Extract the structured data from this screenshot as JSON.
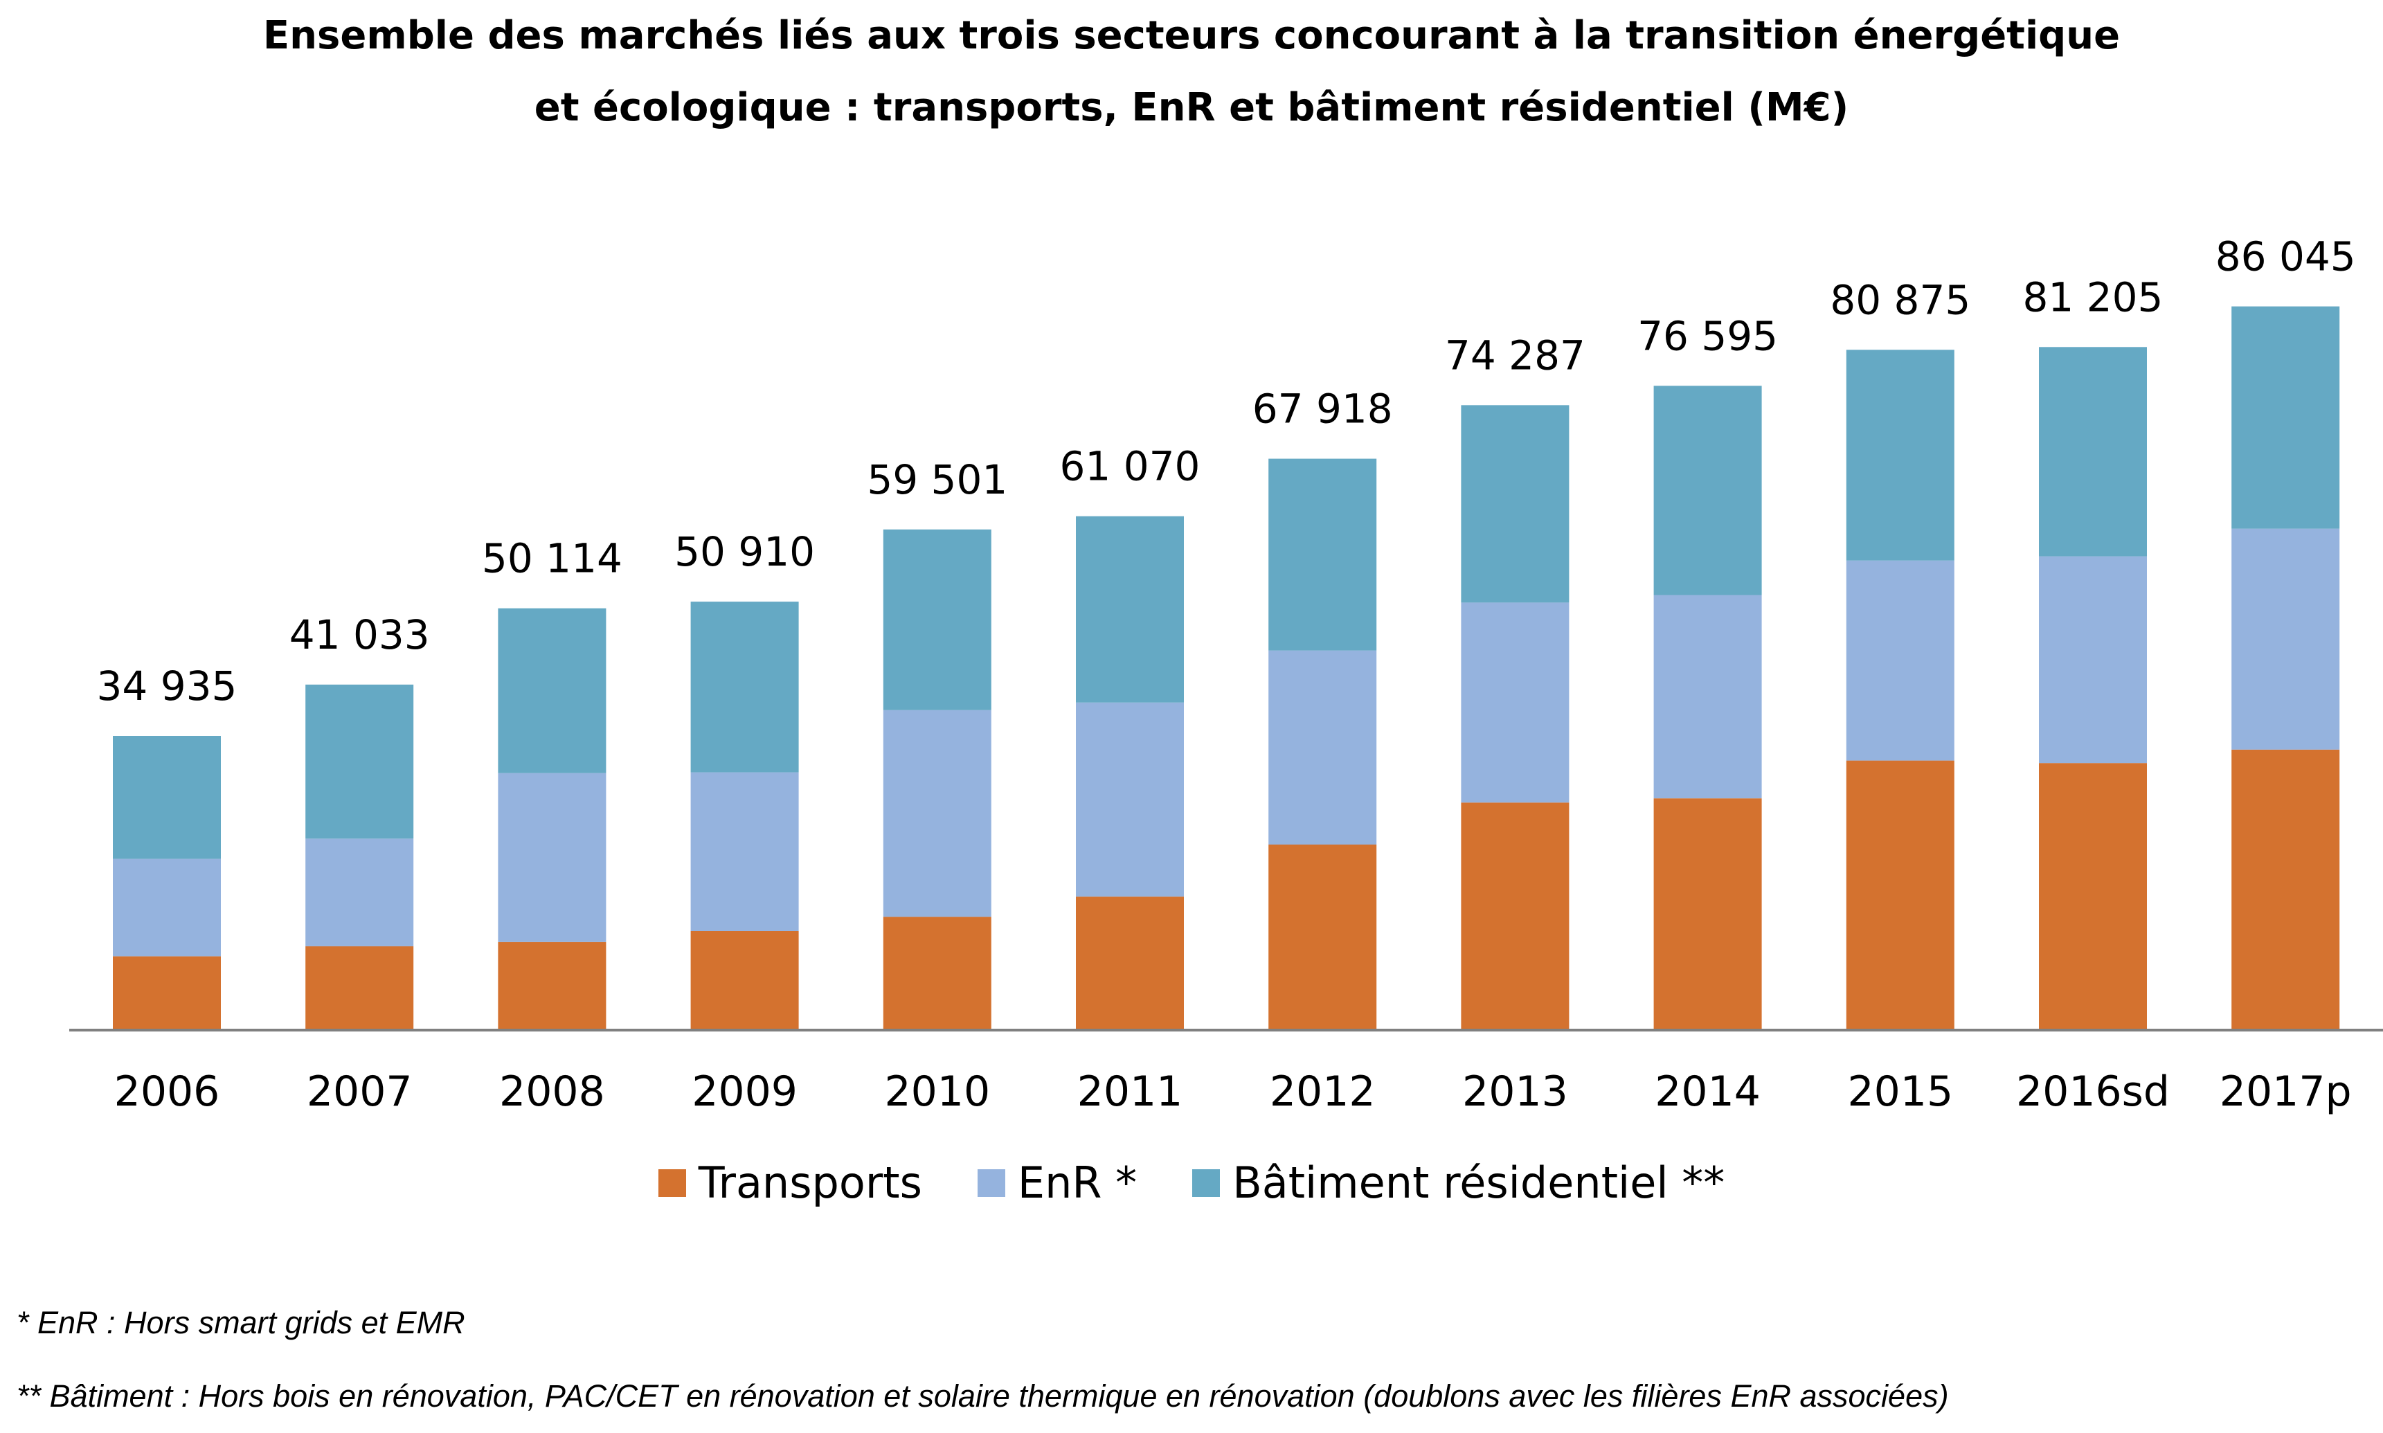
{
  "title_line1": "Ensemble des marchés liés aux trois secteurs concourant à la transition énergétique",
  "title_line2": "et écologique : transports, EnR et bâtiment résidentiel (M€)",
  "footnotes": [
    "* EnR : Hors smart grids et EMR",
    "** Bâtiment : Hors bois en rénovation, PAC/CET en rénovation et solaire thermique en rénovation (doublons avec les filières EnR associées)"
  ],
  "colors": {
    "transports": "#D4722F",
    "enr": "#95B3DE",
    "batiment": "#65A9C4",
    "axis": "#808080"
  },
  "chart_data": {
    "type": "bar",
    "stacked": true,
    "title": "Ensemble des marchés liés aux trois secteurs concourant à la transition énergétique et écologique : transports, EnR et bâtiment résidentiel (M€)",
    "categories": [
      "2006",
      "2007",
      "2008",
      "2009",
      "2010",
      "2011",
      "2012",
      "2013",
      "2014",
      "2015",
      "2016sd",
      "2017p"
    ],
    "series": [
      {
        "name": "Transports",
        "values": [
          8700,
          9900,
          10400,
          11700,
          13400,
          15800,
          22000,
          27000,
          27500,
          32000,
          31700,
          33300
        ]
      },
      {
        "name": "EnR *",
        "values": [
          11600,
          12800,
          20100,
          18900,
          24600,
          23100,
          23100,
          23800,
          24200,
          23800,
          24600,
          26300
        ]
      },
      {
        "name": "Bâtiment résidentiel **",
        "values": [
          14635,
          18333,
          19614,
          20310,
          21501,
          22170,
          22818,
          23487,
          24895,
          25075,
          24905,
          26445
        ]
      }
    ],
    "totals_labels": [
      "34 935",
      "41 033",
      "50 114",
      "50 910",
      "59 501",
      "61 070",
      "67 918",
      "74 287",
      "76 595",
      "80 875",
      "81 205",
      "86 045"
    ],
    "totals": [
      34935,
      41033,
      50114,
      50910,
      59501,
      61070,
      67918,
      74287,
      76595,
      80875,
      81205,
      86045
    ],
    "ylim": [
      0,
      100000
    ],
    "xlabel": "",
    "ylabel": "",
    "grid": false,
    "legend_position": "bottom"
  }
}
